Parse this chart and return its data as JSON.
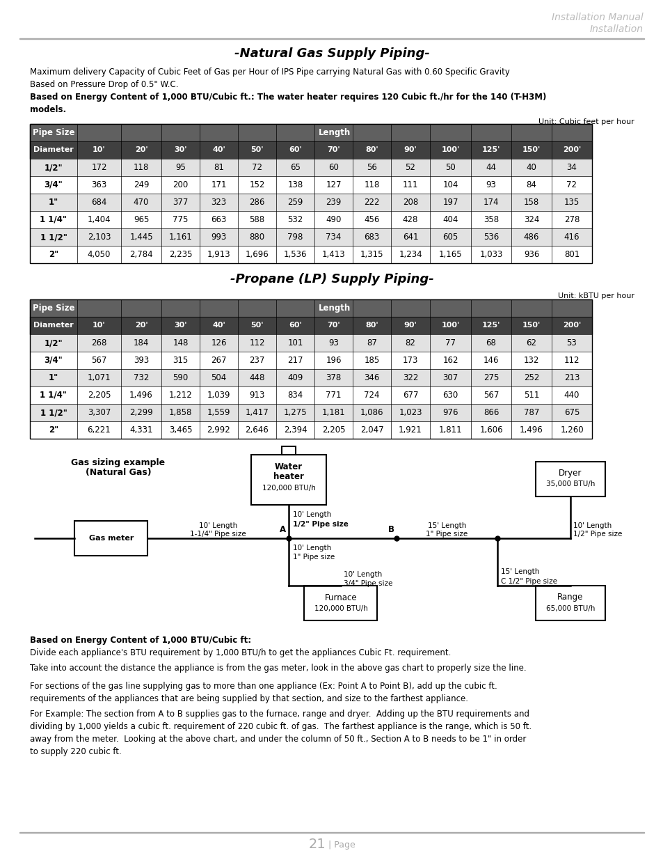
{
  "title_header1": "Installation Manual",
  "title_header2": "Installation",
  "section1_title": "-Natural Gas Supply Piping-",
  "section1_desc": "Maximum delivery Capacity of Cubic Feet of Gas per Hour of IPS Pipe carrying Natural Gas with 0.60 Specific Gravity\nBased on Pressure Drop of 0.5\" W.C.",
  "section1_note": "Based on Energy Content of 1,000 BTU/Cubic ft.: The water heater requires 120 Cubic ft./hr for the 140 (T-H3M)\nmodels.",
  "section1_unit": "Unit: Cubic feet per hour",
  "table_subheader": [
    "Diameter",
    "10'",
    "20'",
    "30'",
    "40'",
    "50'",
    "60'",
    "70'",
    "80'",
    "90'",
    "100'",
    "125'",
    "150'",
    "200'"
  ],
  "table1_rows": [
    [
      "1/2\"",
      "172",
      "118",
      "95",
      "81",
      "72",
      "65",
      "60",
      "56",
      "52",
      "50",
      "44",
      "40",
      "34"
    ],
    [
      "3/4\"",
      "363",
      "249",
      "200",
      "171",
      "152",
      "138",
      "127",
      "118",
      "111",
      "104",
      "93",
      "84",
      "72"
    ],
    [
      "1\"",
      "684",
      "470",
      "377",
      "323",
      "286",
      "259",
      "239",
      "222",
      "208",
      "197",
      "174",
      "158",
      "135"
    ],
    [
      "1 1/4\"",
      "1,404",
      "965",
      "775",
      "663",
      "588",
      "532",
      "490",
      "456",
      "428",
      "404",
      "358",
      "324",
      "278"
    ],
    [
      "1 1/2\"",
      "2,103",
      "1,445",
      "1,161",
      "993",
      "880",
      "798",
      "734",
      "683",
      "641",
      "605",
      "536",
      "486",
      "416"
    ],
    [
      "2\"",
      "4,050",
      "2,784",
      "2,235",
      "1,913",
      "1,696",
      "1,536",
      "1,413",
      "1,315",
      "1,234",
      "1,165",
      "1,033",
      "936",
      "801"
    ]
  ],
  "section2_title": "-Propane (LP) Supply Piping-",
  "section2_unit": "Unit: kBTU per hour",
  "table2_rows": [
    [
      "1/2\"",
      "268",
      "184",
      "148",
      "126",
      "112",
      "101",
      "93",
      "87",
      "82",
      "77",
      "68",
      "62",
      "53"
    ],
    [
      "3/4\"",
      "567",
      "393",
      "315",
      "267",
      "237",
      "217",
      "196",
      "185",
      "173",
      "162",
      "146",
      "132",
      "112"
    ],
    [
      "1\"",
      "1,071",
      "732",
      "590",
      "504",
      "448",
      "409",
      "378",
      "346",
      "322",
      "307",
      "275",
      "252",
      "213"
    ],
    [
      "1 1/4\"",
      "2,205",
      "1,496",
      "1,212",
      "1,039",
      "913",
      "834",
      "771",
      "724",
      "677",
      "630",
      "567",
      "511",
      "440"
    ],
    [
      "1 1/2\"",
      "3,307",
      "2,299",
      "1,858",
      "1,559",
      "1,417",
      "1,275",
      "1,181",
      "1,086",
      "1,023",
      "976",
      "866",
      "787",
      "675"
    ],
    [
      "2\"",
      "6,221",
      "4,331",
      "3,465",
      "2,992",
      "2,646",
      "2,394",
      "2,205",
      "2,047",
      "1,921",
      "1,811",
      "1,606",
      "1,496",
      "1,260"
    ]
  ],
  "footer_texts": [
    "Based on Energy Content of 1,000 BTU/Cubic ft:",
    "Divide each appliance's BTU requirement by 1,000 BTU/h to get the appliances Cubic Ft. requirement.",
    "Take into account the distance the appliance is from the gas meter, look in the above gas chart to properly size the line.",
    "For sections of the gas line supplying gas to more than one appliance (Ex: Point A to Point B), add up the cubic ft.\nrequirements of the appliances that are being supplied by that section, and size to the farthest appliance.",
    "For Example: The section from A to B supplies gas to the furnace, range and dryer.  Adding up the BTU requirements and\ndividing by 1,000 yields a cubic ft. requirement of 220 cubic ft. of gas.  The farthest appliance is the range, which is 50 ft.\naway from the meter.  Looking at the above chart, and under the column of 50 ft., Section A to B needs to be 1\" in order\nto supply 220 cubic ft."
  ],
  "page_num": "21"
}
